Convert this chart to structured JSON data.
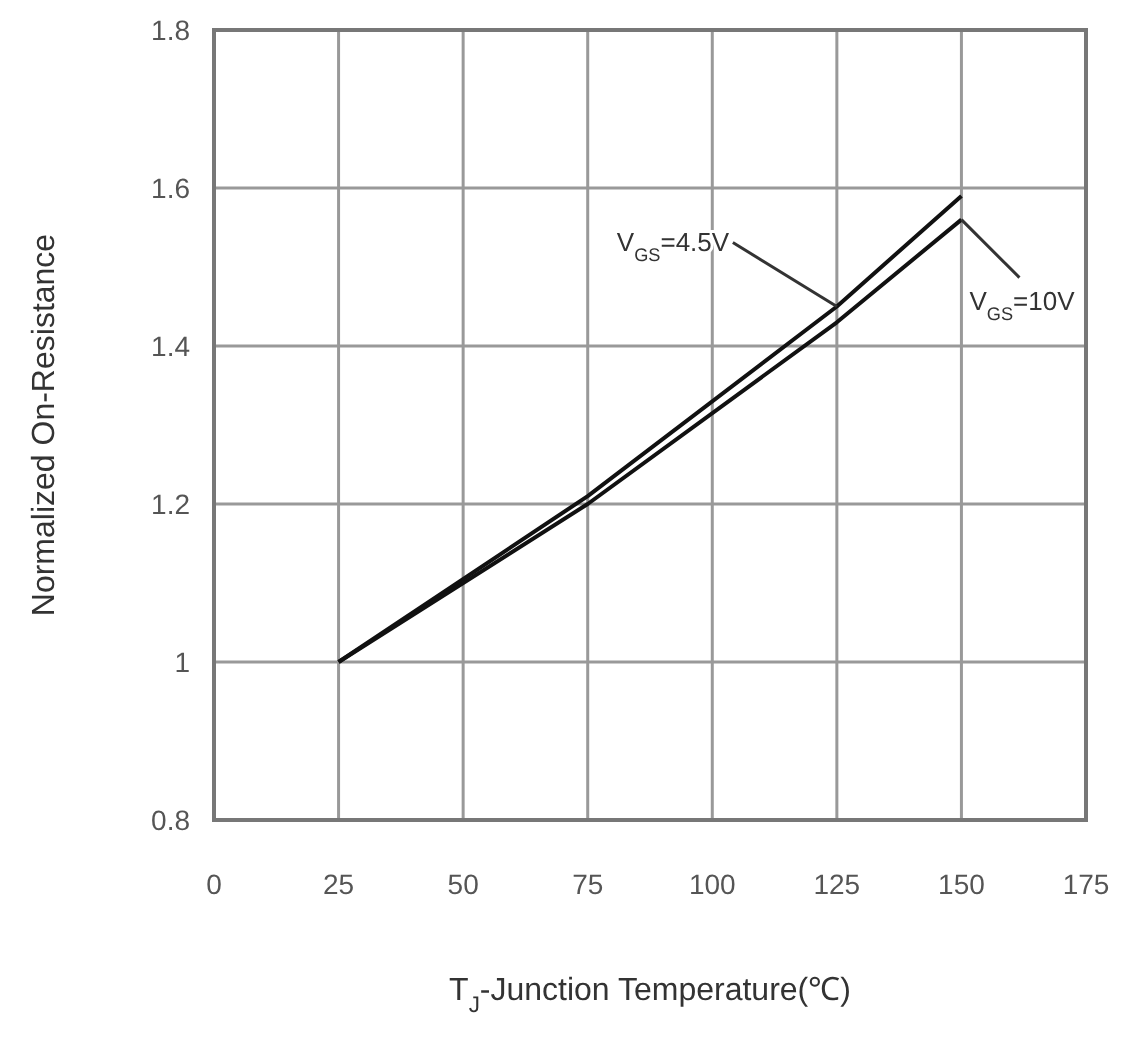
{
  "chart_data": {
    "type": "line",
    "xlabel": "T$_{J}$-Junction Temperature(℃)",
    "ylabel": "Normalized On-Resistance",
    "xlim": [
      0,
      175
    ],
    "xticks": [
      0,
      25,
      50,
      75,
      100,
      125,
      150,
      175
    ],
    "ylim": [
      0.8,
      1.8
    ],
    "yticks": [
      0.8,
      1,
      1.2,
      1.4,
      1.6,
      1.8
    ],
    "grid": true,
    "line_style": "solid",
    "marker": "none",
    "series": [
      {
        "color": "#111111",
        "x": [
          25,
          75,
          125,
          150
        ],
        "values": [
          1.0,
          1.21,
          1.45,
          1.59
        ]
      },
      {
        "color": "#111111",
        "x": [
          25,
          75,
          125,
          150
        ],
        "values": [
          1.0,
          1.2,
          1.43,
          1.56
        ]
      }
    ],
    "annotations": [
      {
        "text": "V$_{GS}$=4.5V",
        "x": 125,
        "y": 1.45
      },
      {
        "text": "V$_{GS}$=10V",
        "x": 150,
        "y": 1.56
      }
    ]
  }
}
